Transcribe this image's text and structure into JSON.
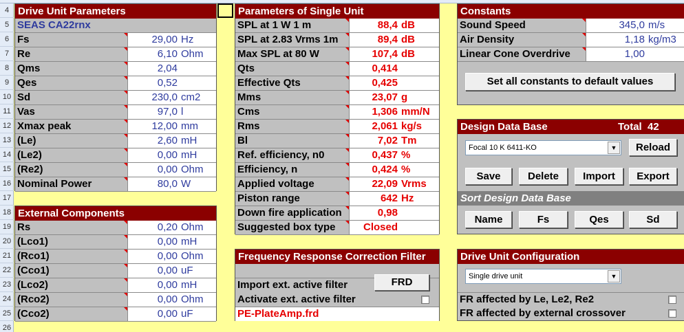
{
  "row_numbers": [
    "4",
    "5",
    "6",
    "7",
    "8",
    "9",
    "10",
    "11",
    "12",
    "13",
    "14",
    "15",
    "16",
    "17",
    "18",
    "19",
    "20",
    "21",
    "22",
    "23",
    "24",
    "25",
    "26"
  ],
  "drive_unit": {
    "title": "Drive Unit Parameters",
    "name": "SEAS CA22rnx",
    "rows": [
      {
        "label": "Fs",
        "value": "29,00",
        "unit": "Hz"
      },
      {
        "label": "Re",
        "value": "6,10",
        "unit": "Ohm"
      },
      {
        "label": "Qms",
        "value": "2,04",
        "unit": ""
      },
      {
        "label": "Qes",
        "value": "0,52",
        "unit": ""
      },
      {
        "label": "Sd",
        "value": "230,0",
        "unit": "cm2"
      },
      {
        "label": "Vas",
        "value": "97,0",
        "unit": "l"
      },
      {
        "label": "Xmax peak",
        "value": "12,00",
        "unit": "mm"
      },
      {
        "label": "(Le)",
        "value": "2,60",
        "unit": "mH"
      },
      {
        "label": "(Le2)",
        "value": "0,00",
        "unit": "mH"
      },
      {
        "label": "(Re2)",
        "value": "0,00",
        "unit": "Ohm"
      },
      {
        "label": "Nominal Power",
        "value": "80,0",
        "unit": "W"
      }
    ]
  },
  "external": {
    "title": "External Components",
    "rows": [
      {
        "label": "Rs",
        "value": "0,20",
        "unit": "Ohm"
      },
      {
        "label": "(Lco1)",
        "value": "0,00",
        "unit": "mH"
      },
      {
        "label": "(Rco1)",
        "value": "0,00",
        "unit": "Ohm"
      },
      {
        "label": "(Cco1)",
        "value": "0,00",
        "unit": "uF"
      },
      {
        "label": "(Lco2)",
        "value": "0,00",
        "unit": "mH"
      },
      {
        "label": "(Rco2)",
        "value": "0,00",
        "unit": "Ohm"
      },
      {
        "label": "(Cco2)",
        "value": "0,00",
        "unit": "uF"
      }
    ]
  },
  "single_unit": {
    "title": "Parameters of Single Unit",
    "rows": [
      {
        "label": "SPL at 1 W 1 m",
        "value": "88,4",
        "unit": "dB"
      },
      {
        "label": "SPL at 2.83 Vrms 1m",
        "value": "89,4",
        "unit": "dB"
      },
      {
        "label": "Max SPL at 80 W",
        "value": "107,4",
        "unit": "dB"
      },
      {
        "label": "Qts",
        "value": "0,414",
        "unit": ""
      },
      {
        "label": "Effective Qts",
        "value": "0,425",
        "unit": ""
      },
      {
        "label": "Mms",
        "value": "23,07",
        "unit": "g"
      },
      {
        "label": "Cms",
        "value": "1,306",
        "unit": "mm/N"
      },
      {
        "label": "Rms",
        "value": "2,061",
        "unit": "kg/s"
      },
      {
        "label": "Bl",
        "value": "7,02",
        "unit": "Tm"
      },
      {
        "label": "Ref. efficiency, n0",
        "value": "0,437",
        "unit": "%"
      },
      {
        "label": "Efficiency, n",
        "value": "0,424",
        "unit": "%"
      },
      {
        "label": "Applied voltage",
        "value": "22,09",
        "unit": "Vrms"
      },
      {
        "label": "Piston range",
        "value": "642",
        "unit": "Hz"
      },
      {
        "label": "Down fire application",
        "value": "0,98",
        "unit": ""
      },
      {
        "label": "Suggested box type",
        "value": "Closed",
        "unit": ""
      }
    ]
  },
  "fr_filter": {
    "title": "Frequency Response Correction Filter",
    "import_label": "Import ext. active filter",
    "frd_button": "FRD",
    "activate_label": "Activate ext. active filter",
    "filename": "PE-PlateAmp.frd"
  },
  "constants": {
    "title": "Constants",
    "rows": [
      {
        "label": "Sound Speed",
        "value": "345,0",
        "unit": "m/s"
      },
      {
        "label": "Air Density",
        "value": "1,18",
        "unit": "kg/m3"
      },
      {
        "label": "Linear Cone Overdrive",
        "value": "1,00",
        "unit": ""
      }
    ],
    "default_button": "Set all constants to default values"
  },
  "database": {
    "title": "Design Data Base",
    "total_label": "Total",
    "total_value": "42",
    "selected": "Focal 10 K 6411-KO",
    "reload": "Reload",
    "save": "Save",
    "delete": "Delete",
    "import": "Import",
    "export": "Export",
    "sort_title": "Sort Design Data Base",
    "sort_buttons": [
      "Name",
      "Fs",
      "Qes",
      "Sd"
    ]
  },
  "config": {
    "title": "Drive Unit Configuration",
    "selected": "Single drive unit",
    "fr_le": "FR affected by Le, Le2, Re2",
    "fr_ext": "FR affected by external crossover"
  },
  "colors": {
    "header": "#8b0000",
    "panel": "#c0c0c0",
    "value_blue": "#2e3b9e",
    "value_red": "#e60000",
    "background": "#ffff99"
  }
}
